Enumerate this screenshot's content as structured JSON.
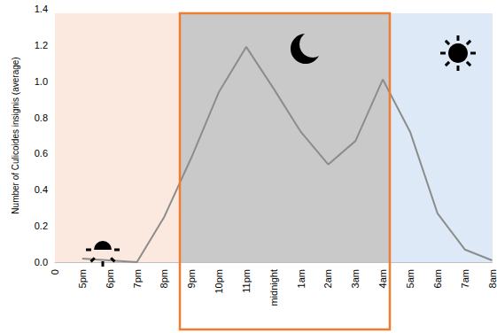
{
  "chart_data": {
    "type": "line",
    "y_label": "Number of Culicoides insignis (average)",
    "categories": [
      "0",
      "5pm",
      "6pm",
      "7pm",
      "8pm",
      "9pm",
      "10pm",
      "11pm",
      "midnight",
      "1am",
      "2am",
      "3am",
      "4am",
      "5am",
      "6am",
      "7am",
      "8am"
    ],
    "values": [
      null,
      0.02,
      0.01,
      0.0,
      0.25,
      0.58,
      0.94,
      1.19,
      0.96,
      0.72,
      0.54,
      0.67,
      1.01,
      0.72,
      0.27,
      0.07,
      0.01
    ],
    "color": "#8c8c8c",
    "marker": "none",
    "ylim": [
      0,
      1.4
    ],
    "yticks": [
      {
        "value": 0,
        "label": "0.0"
      },
      0.2,
      0.4,
      0.6,
      0.8,
      {
        "value": 1,
        "label": "1.0"
      },
      1.2,
      1.4
    ],
    "grid": false
  }
}
